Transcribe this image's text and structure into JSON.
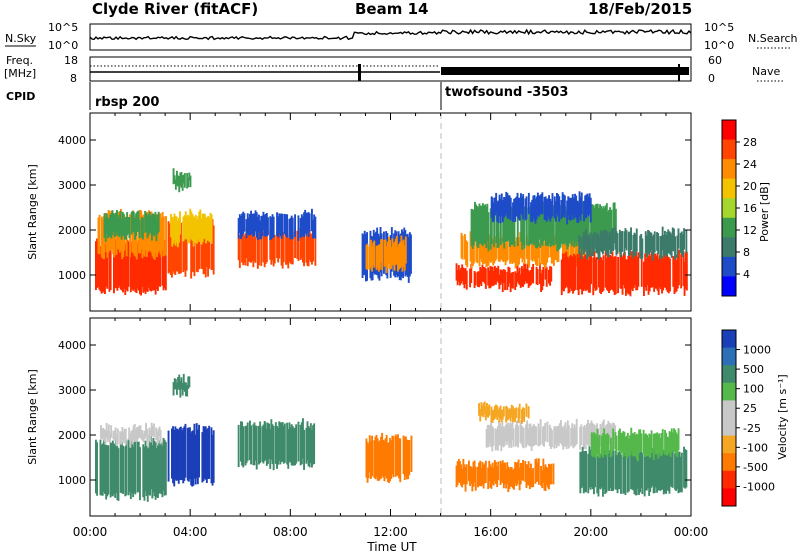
{
  "header": {
    "station": "Clyde River (fitACF)",
    "beam": "Beam 14",
    "date": "18/Feb/2015"
  },
  "top_panels": {
    "nsky_label": "N.Sky",
    "nsky_ticks": [
      "10^5",
      "10^0"
    ],
    "nsearch_label": "N.Search",
    "nsearch_ticks": [
      "10^5",
      "10^0"
    ],
    "freq_label_1": "Freq.",
    "freq_label_2": "[MHz]",
    "freq_ticks": [
      "18",
      "8"
    ],
    "nave_label": "Nave",
    "nave_ticks": [
      "60",
      "0"
    ],
    "cpid_label": "CPID",
    "cpid_1": "rbsp 200",
    "cpid_2": "twofsound -3503"
  },
  "colorbars": {
    "power": {
      "label": "Power [dB]",
      "ticks": [
        "28",
        "24",
        "20",
        "16",
        "12",
        "8",
        "4"
      ],
      "colors": [
        "#ff0000",
        "#ff4500",
        "#ff8c00",
        "#f3c300",
        "#a5d62e",
        "#3c9a4e",
        "#3c7a6a",
        "#1e4cc8",
        "#0000ff"
      ]
    },
    "velocity": {
      "label": "Velocity [m s⁻¹]",
      "ticks": [
        "1000",
        "500",
        "100",
        "25",
        "-25",
        "-100",
        "-500",
        "-1000"
      ],
      "colors": [
        "#1b3fb7",
        "#2d6fb5",
        "#3e8a6a",
        "#55b84a",
        "#c8c8c8",
        "#c8c8c8",
        "#f5a623",
        "#ff7a00",
        "#ff2a00",
        "#ff0000"
      ]
    }
  },
  "chart_data": [
    {
      "type": "heatmap",
      "name": "power",
      "ylabel": "Slant Range [km]",
      "yticks": [
        1000,
        2000,
        3000,
        4000
      ],
      "ylim": [
        200,
        4600
      ],
      "xlim": [
        0,
        24
      ],
      "blobs": [
        {
          "t0": 0.2,
          "t1": 3.0,
          "r0": 600,
          "r1": 1800,
          "c": "#ff2a00"
        },
        {
          "t0": 0.3,
          "t1": 3.0,
          "r0": 1400,
          "r1": 2400,
          "c": "#ff8c00"
        },
        {
          "t0": 0.5,
          "t1": 2.8,
          "r0": 1800,
          "r1": 2400,
          "c": "#3c9a4e"
        },
        {
          "t0": 3.1,
          "t1": 4.9,
          "r0": 1000,
          "r1": 2200,
          "c": "#ff4500"
        },
        {
          "t0": 3.2,
          "t1": 4.9,
          "r0": 1700,
          "r1": 2400,
          "c": "#f3c300"
        },
        {
          "t0": 3.3,
          "t1": 4.0,
          "r0": 2900,
          "r1": 3300,
          "c": "#3c9a4e"
        },
        {
          "t0": 5.9,
          "t1": 9.0,
          "r0": 1200,
          "r1": 2000,
          "c": "#ff4500"
        },
        {
          "t0": 5.9,
          "t1": 9.0,
          "r0": 1800,
          "r1": 2400,
          "c": "#1e4cc8"
        },
        {
          "t0": 10.8,
          "t1": 12.8,
          "r0": 900,
          "r1": 2000,
          "c": "#1e4cc8"
        },
        {
          "t0": 11.0,
          "t1": 12.6,
          "r0": 1100,
          "r1": 1800,
          "c": "#ff8c00"
        },
        {
          "t0": 14.6,
          "t1": 18.4,
          "r0": 700,
          "r1": 1200,
          "c": "#ff2a00"
        },
        {
          "t0": 14.8,
          "t1": 20.0,
          "r0": 1200,
          "r1": 1900,
          "c": "#ff8c00"
        },
        {
          "t0": 15.2,
          "t1": 21.0,
          "r0": 1600,
          "r1": 2600,
          "c": "#3c9a4e"
        },
        {
          "t0": 16.0,
          "t1": 20.0,
          "r0": 2200,
          "r1": 2800,
          "c": "#1e4cc8"
        },
        {
          "t0": 18.8,
          "t1": 23.8,
          "r0": 600,
          "r1": 1500,
          "c": "#ff2a00"
        },
        {
          "t0": 19.5,
          "t1": 23.8,
          "r0": 1400,
          "r1": 2000,
          "c": "#3c7a6a"
        }
      ]
    },
    {
      "type": "heatmap",
      "name": "velocity",
      "ylabel": "Slant Range [km]",
      "yticks": [
        1000,
        2000,
        3000,
        4000
      ],
      "ylim": [
        200,
        4600
      ],
      "xlim": [
        0,
        24
      ],
      "xticks": [
        "00:00",
        "04:00",
        "08:00",
        "12:00",
        "16:00",
        "20:00",
        "00:00"
      ],
      "xlabel": "Time UT",
      "blobs": [
        {
          "t0": 0.2,
          "t1": 3.0,
          "r0": 600,
          "r1": 1900,
          "c": "#3e8a6a"
        },
        {
          "t0": 0.4,
          "t1": 2.8,
          "r0": 1800,
          "r1": 2200,
          "c": "#c8c8c8"
        },
        {
          "t0": 3.1,
          "t1": 4.9,
          "r0": 900,
          "r1": 2200,
          "c": "#1b3fb7"
        },
        {
          "t0": 3.3,
          "t1": 4.0,
          "r0": 2900,
          "r1": 3300,
          "c": "#3e8a6a"
        },
        {
          "t0": 5.9,
          "t1": 9.0,
          "r0": 1300,
          "r1": 2300,
          "c": "#3e8a6a"
        },
        {
          "t0": 11.0,
          "t1": 12.8,
          "r0": 1000,
          "r1": 2000,
          "c": "#ff7a00"
        },
        {
          "t0": 14.6,
          "t1": 18.5,
          "r0": 800,
          "r1": 1400,
          "c": "#ff7a00"
        },
        {
          "t0": 15.8,
          "t1": 21.0,
          "r0": 1700,
          "r1": 2300,
          "c": "#c8c8c8"
        },
        {
          "t0": 15.5,
          "t1": 17.5,
          "r0": 2300,
          "r1": 2700,
          "c": "#f5a623"
        },
        {
          "t0": 19.5,
          "t1": 23.8,
          "r0": 700,
          "r1": 1700,
          "c": "#3e8a6a"
        },
        {
          "t0": 20.0,
          "t1": 23.5,
          "r0": 1500,
          "r1": 2100,
          "c": "#55b84a"
        }
      ]
    }
  ]
}
